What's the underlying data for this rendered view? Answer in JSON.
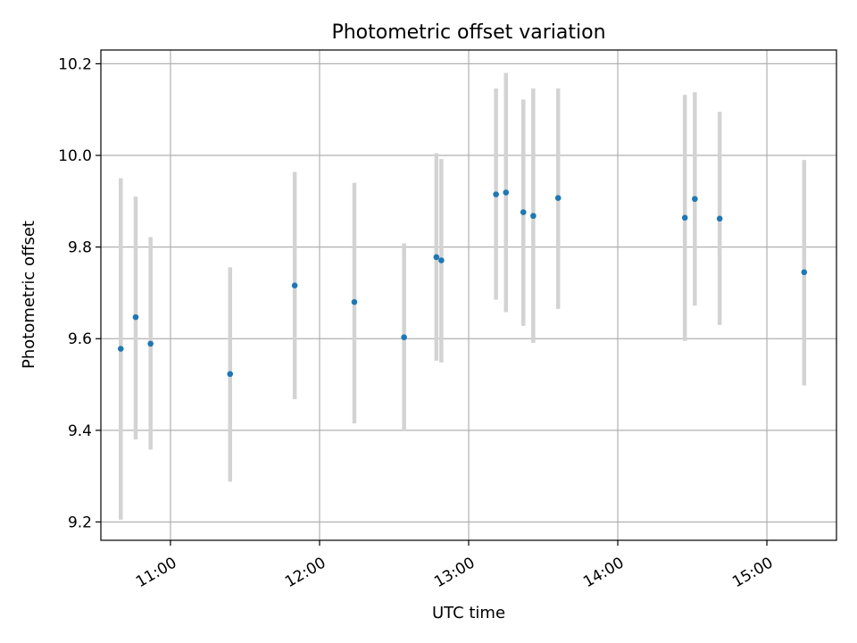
{
  "chart_data": {
    "type": "scatter",
    "title": "Photometric offset variation",
    "xlabel": "UTC time",
    "ylabel": "Photometric offset",
    "x_axis": {
      "kind": "time",
      "range": [
        "10:32",
        "15:28"
      ],
      "ticks": [
        "11:00",
        "12:00",
        "13:00",
        "14:00",
        "15:00"
      ]
    },
    "y_axis": {
      "range": [
        9.16,
        10.23
      ],
      "ticks": [
        9.2,
        9.4,
        9.6,
        9.8,
        10.0,
        10.2
      ],
      "tick_labels": [
        "9.2",
        "9.4",
        "9.6",
        "9.8",
        "10.0",
        "10.2"
      ]
    },
    "grid": true,
    "legend": "none",
    "marker_color": "#1f77b4",
    "errorbar_color": "#d3d3d3",
    "series": [
      {
        "points": [
          {
            "x": "10:40",
            "y": 9.578,
            "low": 9.205,
            "high": 9.95
          },
          {
            "x": "10:46",
            "y": 9.647,
            "low": 9.38,
            "high": 9.91
          },
          {
            "x": "10:52",
            "y": 9.589,
            "low": 9.358,
            "high": 9.822
          },
          {
            "x": "11:24",
            "y": 9.523,
            "low": 9.288,
            "high": 9.756
          },
          {
            "x": "11:50",
            "y": 9.716,
            "low": 9.468,
            "high": 9.964
          },
          {
            "x": "12:14",
            "y": 9.68,
            "low": 9.415,
            "high": 9.94
          },
          {
            "x": "12:34",
            "y": 9.603,
            "low": 9.398,
            "high": 9.808
          },
          {
            "x": "12:47",
            "y": 9.778,
            "low": 9.552,
            "high": 10.005
          },
          {
            "x": "12:49",
            "y": 9.771,
            "low": 9.548,
            "high": 9.992
          },
          {
            "x": "13:11",
            "y": 9.915,
            "low": 9.685,
            "high": 10.146
          },
          {
            "x": "13:15",
            "y": 9.919,
            "low": 9.658,
            "high": 10.18
          },
          {
            "x": "13:22",
            "y": 9.876,
            "low": 9.628,
            "high": 10.122
          },
          {
            "x": "13:26",
            "y": 9.868,
            "low": 9.591,
            "high": 10.146
          },
          {
            "x": "13:36",
            "y": 9.907,
            "low": 9.665,
            "high": 10.146
          },
          {
            "x": "14:27",
            "y": 9.864,
            "low": 9.595,
            "high": 10.132
          },
          {
            "x": "14:31",
            "y": 9.905,
            "low": 9.672,
            "high": 10.138
          },
          {
            "x": "14:41",
            "y": 9.862,
            "low": 9.63,
            "high": 10.095
          },
          {
            "x": "15:15",
            "y": 9.745,
            "low": 9.498,
            "high": 9.99
          }
        ]
      }
    ]
  }
}
